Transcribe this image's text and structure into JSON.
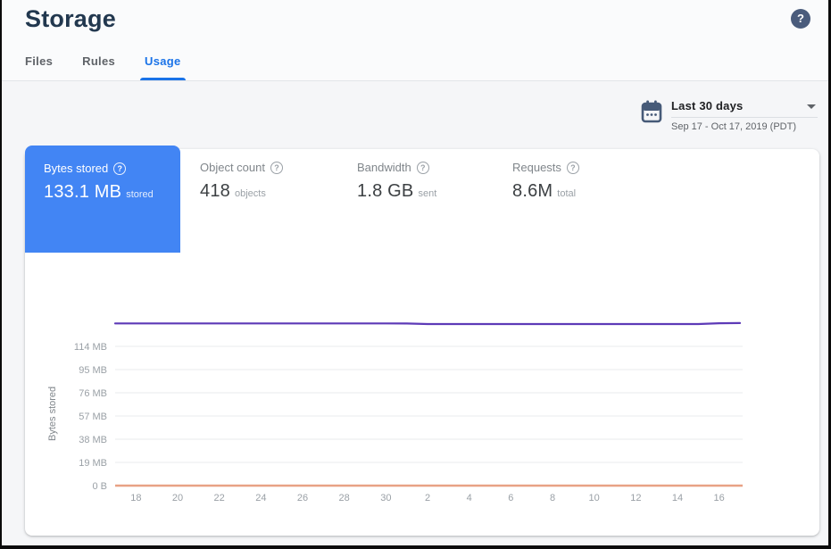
{
  "page": {
    "title": "Storage"
  },
  "icons": {
    "help_glyph": "?"
  },
  "tabs": [
    {
      "label": "Files",
      "active": false
    },
    {
      "label": "Rules",
      "active": false
    },
    {
      "label": "Usage",
      "active": true
    }
  ],
  "date_range": {
    "label": "Last 30 days",
    "detail": "Sep 17 - Oct 17, 2019 (PDT)"
  },
  "metrics": [
    {
      "label": "Bytes stored",
      "value": "133.1 MB",
      "unit": "stored",
      "selected": true
    },
    {
      "label": "Object count",
      "value": "418",
      "unit": "objects",
      "selected": false
    },
    {
      "label": "Bandwidth",
      "value": "1.8 GB",
      "unit": "sent",
      "selected": false
    },
    {
      "label": "Requests",
      "value": "8.6M",
      "unit": "total",
      "selected": false
    }
  ],
  "colors": {
    "selected_card": "#4285f4",
    "active_tab": "#1a73e8",
    "line": "#5d3ab7",
    "axis_line": "#e8a185",
    "gridline": "#e9ebee",
    "tick_text": "#9aa0a6"
  },
  "chart_data": {
    "type": "line",
    "title": "Bytes stored",
    "ylabel": "Bytes stored",
    "x_unit": "day of month (Sep 17 - Oct 17)",
    "x_range_days": [
      0,
      30
    ],
    "x_tick_positions": [
      1,
      3,
      5,
      7,
      9,
      11,
      13,
      15,
      17,
      19,
      21,
      23,
      25,
      27,
      29
    ],
    "x_tick_labels": [
      "18",
      "20",
      "22",
      "24",
      "26",
      "28",
      "30",
      "2",
      "4",
      "6",
      "8",
      "10",
      "12",
      "14",
      "16"
    ],
    "y_tick_labels": [
      "0 B",
      "19 MB",
      "38 MB",
      "57 MB",
      "76 MB",
      "95 MB",
      "114 MB"
    ],
    "y_tick_values_mb": [
      0,
      19,
      38,
      57,
      76,
      95,
      114
    ],
    "ylim_mb": [
      0,
      148
    ],
    "grid": true,
    "legend": "none",
    "series": [
      {
        "name": "Bytes stored",
        "color": "#5d3ab7",
        "values_mb": [
          132.8,
          132.8,
          132.8,
          132.8,
          132.8,
          132.8,
          132.8,
          132.8,
          132.8,
          132.8,
          132.8,
          132.8,
          132.8,
          132.8,
          132.7,
          132.3,
          132.3,
          132.3,
          132.3,
          132.3,
          132.3,
          132.3,
          132.3,
          132.3,
          132.3,
          132.3,
          132.3,
          132.3,
          132.3,
          132.9,
          133.1
        ]
      }
    ],
    "axis_line_color": "#e8a185"
  }
}
